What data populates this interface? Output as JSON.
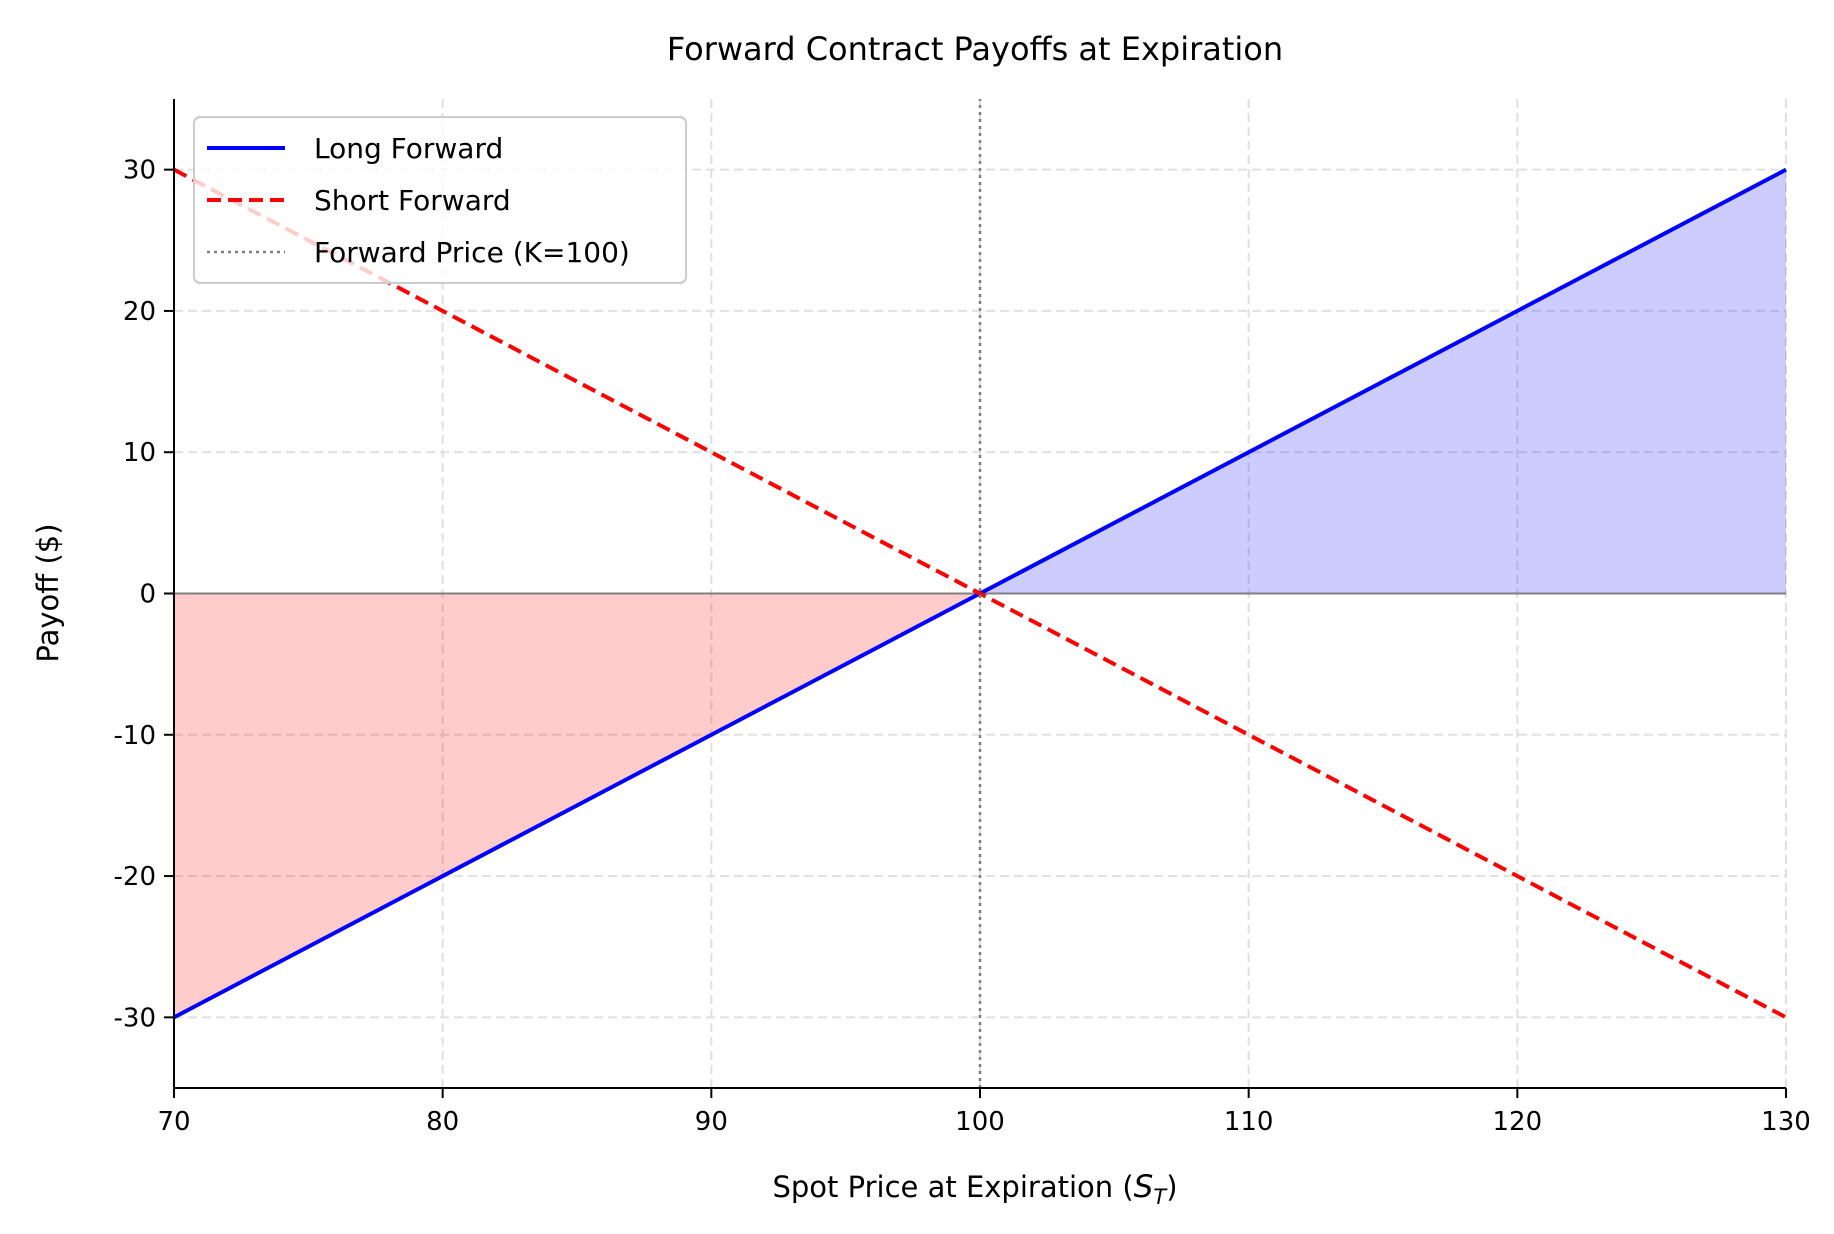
{
  "chart_data": {
    "type": "line",
    "title": "Forward Contract Payoffs at Expiration",
    "xlabel": "Spot Price at Expiration (",
    "xlabel_math": "S",
    "xlabel_sub": "T",
    "xlabel_close": ")",
    "ylabel": "Payoff ($)",
    "xlim": [
      70,
      130
    ],
    "ylim": [
      -35,
      35
    ],
    "xticks": [
      "70",
      "80",
      "90",
      "100",
      "110",
      "120",
      "130"
    ],
    "yticks": [
      "-30",
      "-20",
      "-10",
      "0",
      "10",
      "20",
      "30"
    ],
    "grid": true,
    "legend_position": "top-left",
    "strike": 100,
    "series": [
      {
        "name": "Long Forward",
        "x": [
          70,
          130
        ],
        "y": [
          -30,
          30
        ],
        "color": "#0000ff",
        "style": "solid"
      },
      {
        "name": "Short Forward",
        "x": [
          70,
          130
        ],
        "y": [
          30,
          -30
        ],
        "color": "#ff0000",
        "style": "dashed"
      },
      {
        "name": "Forward Price (K=100)",
        "x": [
          100,
          100
        ],
        "y": [
          -35,
          35
        ],
        "color": "#808080",
        "style": "dotted"
      }
    ],
    "fills": [
      {
        "region": "long payoff above 0",
        "color": "#0000ff",
        "opacity": 0.2
      },
      {
        "region": "long payoff below 0",
        "color": "#ff0000",
        "opacity": 0.2
      }
    ]
  }
}
